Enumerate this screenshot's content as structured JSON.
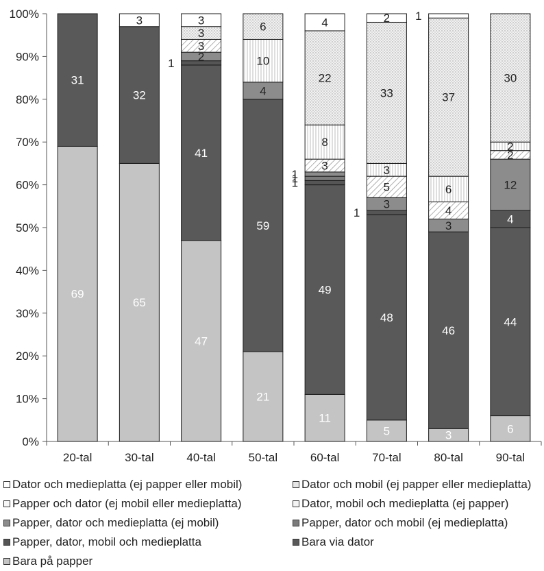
{
  "chart_data": {
    "type": "bar",
    "stacked": true,
    "normalized_percent": true,
    "categories": [
      "20-tal",
      "30-tal",
      "40-tal",
      "50-tal",
      "60-tal",
      "70-tal",
      "80-tal",
      "90-tal"
    ],
    "ylim": [
      0,
      100
    ],
    "yticks": [
      "0%",
      "10%",
      "20%",
      "30%",
      "40%",
      "50%",
      "60%",
      "70%",
      "80%",
      "90%",
      "100%"
    ],
    "grid": false,
    "legend_position": "bottom",
    "series": [
      {
        "name": "Bara på papper",
        "values": [
          69,
          65,
          47,
          21,
          11,
          5,
          3,
          6
        ],
        "labels": [
          "69",
          "65",
          "47",
          "21",
          "11",
          "5",
          "3",
          "6"
        ]
      },
      {
        "name": "Bara via dator",
        "values": [
          31,
          32,
          41,
          59,
          49,
          48,
          46,
          44
        ],
        "labels": [
          "31",
          "32",
          "41",
          "59",
          "49",
          "48",
          "46",
          "44"
        ]
      },
      {
        "name": "Papper, dator, mobil och medieplatta",
        "values": [
          0,
          0,
          1,
          0,
          1,
          1,
          0,
          4
        ],
        "labels": [
          "",
          "",
          "1",
          "",
          "1",
          "1",
          "",
          "4"
        ]
      },
      {
        "name": "Papper, dator och mobil (ej medieplatta)",
        "values": [
          0,
          0,
          0,
          0,
          1,
          0,
          0,
          0
        ],
        "labels": [
          "",
          "",
          "",
          "",
          "1",
          "",
          "",
          ""
        ]
      },
      {
        "name": "Papper, dator och medieplatta (ej mobil)",
        "values": [
          0,
          0,
          2,
          4,
          1,
          3,
          3,
          12
        ],
        "labels": [
          "",
          "",
          "2",
          "4",
          "1",
          "3",
          "3",
          "12"
        ]
      },
      {
        "name": "Dator, mobil och medieplatta (ej papper)",
        "values": [
          0,
          0,
          3,
          0,
          3,
          5,
          4,
          2
        ],
        "labels": [
          "",
          "",
          "3",
          "",
          "3",
          "5",
          "4",
          "2"
        ]
      },
      {
        "name": "Papper och dator (ej mobil eller medieplatta)",
        "values": [
          0,
          0,
          0,
          10,
          8,
          3,
          6,
          2
        ],
        "labels": [
          "",
          "",
          "",
          "10",
          "8",
          "3",
          "6",
          "2"
        ]
      },
      {
        "name": "Dator och mobil (ej papper eller medieplatta)",
        "values": [
          0,
          0,
          3,
          6,
          22,
          33,
          37,
          30
        ],
        "labels": [
          "",
          "",
          "3",
          "6",
          "22",
          "33",
          "37",
          "30"
        ]
      },
      {
        "name": "Dator och medieplatta (ej papper eller mobil)",
        "values": [
          0,
          3,
          3,
          0,
          4,
          2,
          1,
          0
        ],
        "labels": [
          "",
          "3",
          "3",
          "",
          "4",
          "2",
          "1",
          ""
        ]
      }
    ],
    "legend": [
      "Dator och medieplatta (ej papper eller mobil)",
      "Dator och mobil (ej papper eller medieplatta)",
      "Papper och dator (ej mobil eller medieplatta)",
      "Dator, mobil och medieplatta (ej papper)",
      "Papper, dator och medieplatta (ej mobil)",
      "Papper, dator och mobil (ej medieplatta)",
      "Papper, dator, mobil och medieplatta",
      "Bara via dator",
      "Bara på papper"
    ],
    "colors": {
      "Bara på papper": "#c4c4c4",
      "Bara via dator": "#595959",
      "Papper, dator, mobil och medieplatta": "#555555",
      "Papper, dator och mobil (ej medieplatta)": "#7b7b7b",
      "Papper, dator och medieplatta (ej mobil)": "#8c8c8c",
      "Dator, mobil och medieplatta (ej papper)": "#f2f2f2",
      "Papper och dator (ej mobil eller medieplatta)": "#ffffff",
      "Dator och mobil (ej papper eller medieplatta)": "#e3e3e3",
      "Dator och medieplatta (ej papper eller mobil)": "#ffffff"
    }
  }
}
